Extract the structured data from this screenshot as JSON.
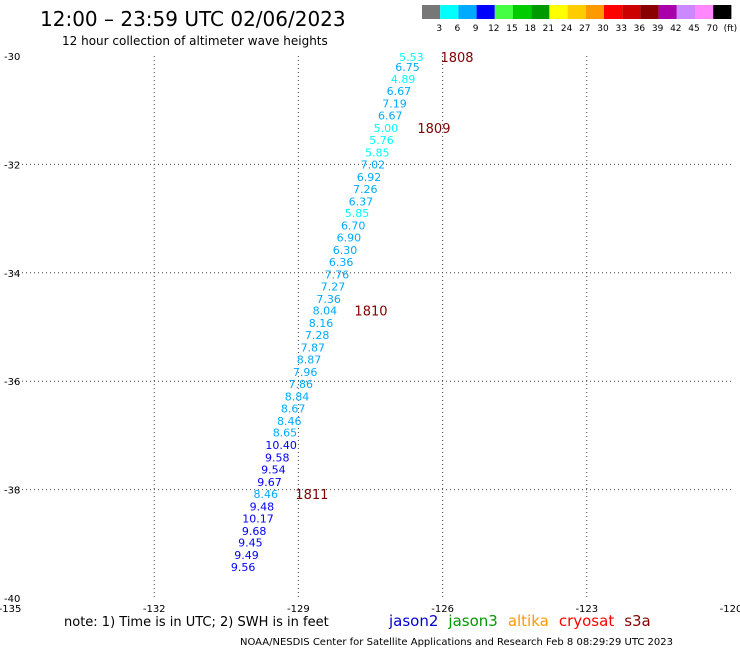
{
  "chart_data": {
    "type": "scatter",
    "title": "12:00  –  23:59 UTC 02/06/2023",
    "subtitle": "12 hour collection of altimeter wave heights",
    "xlim": [
      -135,
      -120
    ],
    "ylim": [
      -40,
      -30
    ],
    "x_ticks": [
      "-135",
      "-132",
      "-129",
      "-126",
      "-123",
      "-120"
    ],
    "y_ticks": [
      "-30",
      "-32",
      "-34",
      "-36",
      "-38",
      "-40"
    ],
    "grid": "dotted",
    "color_scale": {
      "labels": [
        "3",
        "6",
        "9",
        "12",
        "15",
        "18",
        "21",
        "24",
        "27",
        "30",
        "33",
        "36",
        "39",
        "42",
        "45",
        "70",
        "(ft)"
      ],
      "colors": [
        "#777777",
        "#00ffff",
        "#00aaff",
        "#0000ff",
        "#44ff44",
        "#00cc00",
        "#009900",
        "#ffff00",
        "#ffcc00",
        "#ff9900",
        "#ff0000",
        "#cc0000",
        "#880000",
        "#aa00aa",
        "#cc88ff",
        "#ff88ff",
        "#000000"
      ]
    },
    "points": [
      {
        "lon": -126.65,
        "lat": -30.02,
        "label": "5.53"
      },
      {
        "lon": -126.73,
        "lat": -30.2,
        "label": "6.75"
      },
      {
        "lon": -126.82,
        "lat": -30.42,
        "label": "4.89"
      },
      {
        "lon": -126.91,
        "lat": -30.65,
        "label": "6.67"
      },
      {
        "lon": -127.0,
        "lat": -30.88,
        "label": "7.19"
      },
      {
        "lon": -127.09,
        "lat": -31.1,
        "label": "6.67"
      },
      {
        "lon": -127.18,
        "lat": -31.33,
        "label": "5.00"
      },
      {
        "lon": -127.27,
        "lat": -31.55,
        "label": "5.76"
      },
      {
        "lon": -127.36,
        "lat": -31.78,
        "label": "5.85"
      },
      {
        "lon": -127.45,
        "lat": -32.0,
        "label": "7.02"
      },
      {
        "lon": -127.53,
        "lat": -32.23,
        "label": "6.92"
      },
      {
        "lon": -127.61,
        "lat": -32.45,
        "label": "7.26"
      },
      {
        "lon": -127.7,
        "lat": -32.68,
        "label": "6.37"
      },
      {
        "lon": -127.78,
        "lat": -32.9,
        "label": "5.85"
      },
      {
        "lon": -127.86,
        "lat": -33.13,
        "label": "6.70"
      },
      {
        "lon": -127.95,
        "lat": -33.35,
        "label": "6.90"
      },
      {
        "lon": -128.03,
        "lat": -33.58,
        "label": "6.30"
      },
      {
        "lon": -128.11,
        "lat": -33.8,
        "label": "6.36"
      },
      {
        "lon": -128.2,
        "lat": -34.03,
        "label": "7.76"
      },
      {
        "lon": -128.28,
        "lat": -34.25,
        "label": "7.27"
      },
      {
        "lon": -128.37,
        "lat": -34.48,
        "label": "7.36"
      },
      {
        "lon": -128.45,
        "lat": -34.7,
        "label": "8.04"
      },
      {
        "lon": -128.53,
        "lat": -34.93,
        "label": "8.16"
      },
      {
        "lon": -128.61,
        "lat": -35.15,
        "label": "7.28"
      },
      {
        "lon": -128.7,
        "lat": -35.38,
        "label": "7.87"
      },
      {
        "lon": -128.78,
        "lat": -35.6,
        "label": "8.87"
      },
      {
        "lon": -128.86,
        "lat": -35.83,
        "label": "7.96"
      },
      {
        "lon": -128.95,
        "lat": -36.05,
        "label": "7.86"
      },
      {
        "lon": -129.03,
        "lat": -36.28,
        "label": "8.84"
      },
      {
        "lon": -129.11,
        "lat": -36.5,
        "label": "8.67"
      },
      {
        "lon": -129.19,
        "lat": -36.73,
        "label": "8.46"
      },
      {
        "lon": -129.28,
        "lat": -36.95,
        "label": "8.65"
      },
      {
        "lon": -129.36,
        "lat": -37.18,
        "label": "10.40"
      },
      {
        "lon": -129.44,
        "lat": -37.41,
        "label": "9.58"
      },
      {
        "lon": -129.52,
        "lat": -37.63,
        "label": "9.54"
      },
      {
        "lon": -129.6,
        "lat": -37.86,
        "label": "9.67"
      },
      {
        "lon": -129.68,
        "lat": -38.08,
        "label": "8.46"
      },
      {
        "lon": -129.76,
        "lat": -38.31,
        "label": "9.48"
      },
      {
        "lon": -129.84,
        "lat": -38.53,
        "label": "10.17"
      },
      {
        "lon": -129.92,
        "lat": -38.76,
        "label": "9.68"
      },
      {
        "lon": -130.0,
        "lat": -38.98,
        "label": "9.45"
      },
      {
        "lon": -130.08,
        "lat": -39.21,
        "label": "9.49"
      },
      {
        "lon": -130.15,
        "lat": -39.43,
        "label": "9.56"
      }
    ],
    "pass_labels": [
      {
        "lon": -125.7,
        "lat": -30.02,
        "label": "1808"
      },
      {
        "lon": -126.18,
        "lat": -31.33,
        "label": "1809"
      },
      {
        "lon": -127.49,
        "lat": -34.7,
        "label": "1810"
      },
      {
        "lon": -128.72,
        "lat": -38.08,
        "label": "1811"
      }
    ]
  },
  "footer": {
    "note": "note:  1) Time is in UTC;  2) SWH is in feet",
    "satellites": [
      {
        "name": "jason2",
        "color": "#0000cc"
      },
      {
        "name": "jason3",
        "color": "#009900"
      },
      {
        "name": "altika",
        "color": "#ff9900"
      },
      {
        "name": "cryosat",
        "color": "#ff0000"
      },
      {
        "name": "s3a",
        "color": "#880000"
      }
    ],
    "credit": "NOAA/NESDIS Center for Satellite Applications and Research    Feb  8 08:29:29 UTC 2023"
  }
}
